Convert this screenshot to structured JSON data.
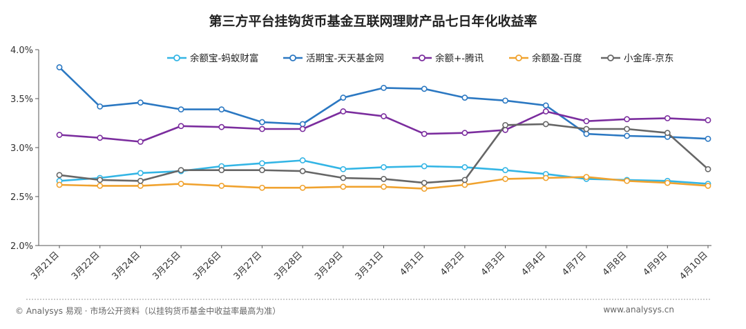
{
  "footer": {
    "source": "© Analysys 易观 · 市场公开资料（以挂钩货币基金中收益率最高为准）",
    "website": "www.analysys.cn"
  },
  "chart_data": {
    "type": "line",
    "title": "第三方平台挂钩货币基金互联网理财产品七日年化收益率",
    "xlabel": "",
    "ylabel": "",
    "ylim": [
      2.0,
      4.0
    ],
    "yticks": [
      "2.0%",
      "2.5%",
      "3.0%",
      "3.5%",
      "4.0%"
    ],
    "grid": false,
    "legend_position": "top",
    "categories": [
      "3月21日",
      "3月22日",
      "3月24日",
      "3月25日",
      "3月26日",
      "3月27日",
      "3月28日",
      "3月29日",
      "3月31日",
      "4月1日",
      "4月2日",
      "4月3日",
      "4月4日",
      "4月7日",
      "4月8日",
      "4月9日",
      "4月10日"
    ],
    "series": [
      {
        "name": "余额宝-蚂蚁财富",
        "color": "#33b5e5",
        "values": [
          2.66,
          2.69,
          2.74,
          2.76,
          2.81,
          2.84,
          2.87,
          2.78,
          2.8,
          2.81,
          2.8,
          2.77,
          2.73,
          2.68,
          2.67,
          2.66,
          2.63
        ]
      },
      {
        "name": "活期宝-天天基金网",
        "color": "#2b78c2",
        "values": [
          3.82,
          3.42,
          3.46,
          3.39,
          3.39,
          3.26,
          3.24,
          3.51,
          3.61,
          3.6,
          3.51,
          3.48,
          3.43,
          3.14,
          3.12,
          3.11,
          3.09
        ]
      },
      {
        "name": "余额+-腾讯",
        "color": "#7b2d9e",
        "values": [
          3.13,
          3.1,
          3.06,
          3.22,
          3.21,
          3.19,
          3.19,
          3.37,
          3.32,
          3.14,
          3.15,
          3.18,
          3.37,
          3.27,
          3.29,
          3.3,
          3.28
        ]
      },
      {
        "name": "余额盈-百度",
        "color": "#f0a22e",
        "values": [
          2.62,
          2.61,
          2.61,
          2.63,
          2.61,
          2.59,
          2.59,
          2.6,
          2.6,
          2.58,
          2.62,
          2.68,
          2.69,
          2.7,
          2.66,
          2.64,
          2.61
        ]
      },
      {
        "name": "小金库-京东",
        "color": "#666666",
        "values": [
          2.72,
          2.67,
          2.66,
          2.77,
          2.77,
          2.77,
          2.76,
          2.69,
          2.68,
          2.64,
          2.67,
          3.23,
          3.24,
          3.19,
          3.19,
          3.15,
          2.78
        ]
      }
    ]
  }
}
